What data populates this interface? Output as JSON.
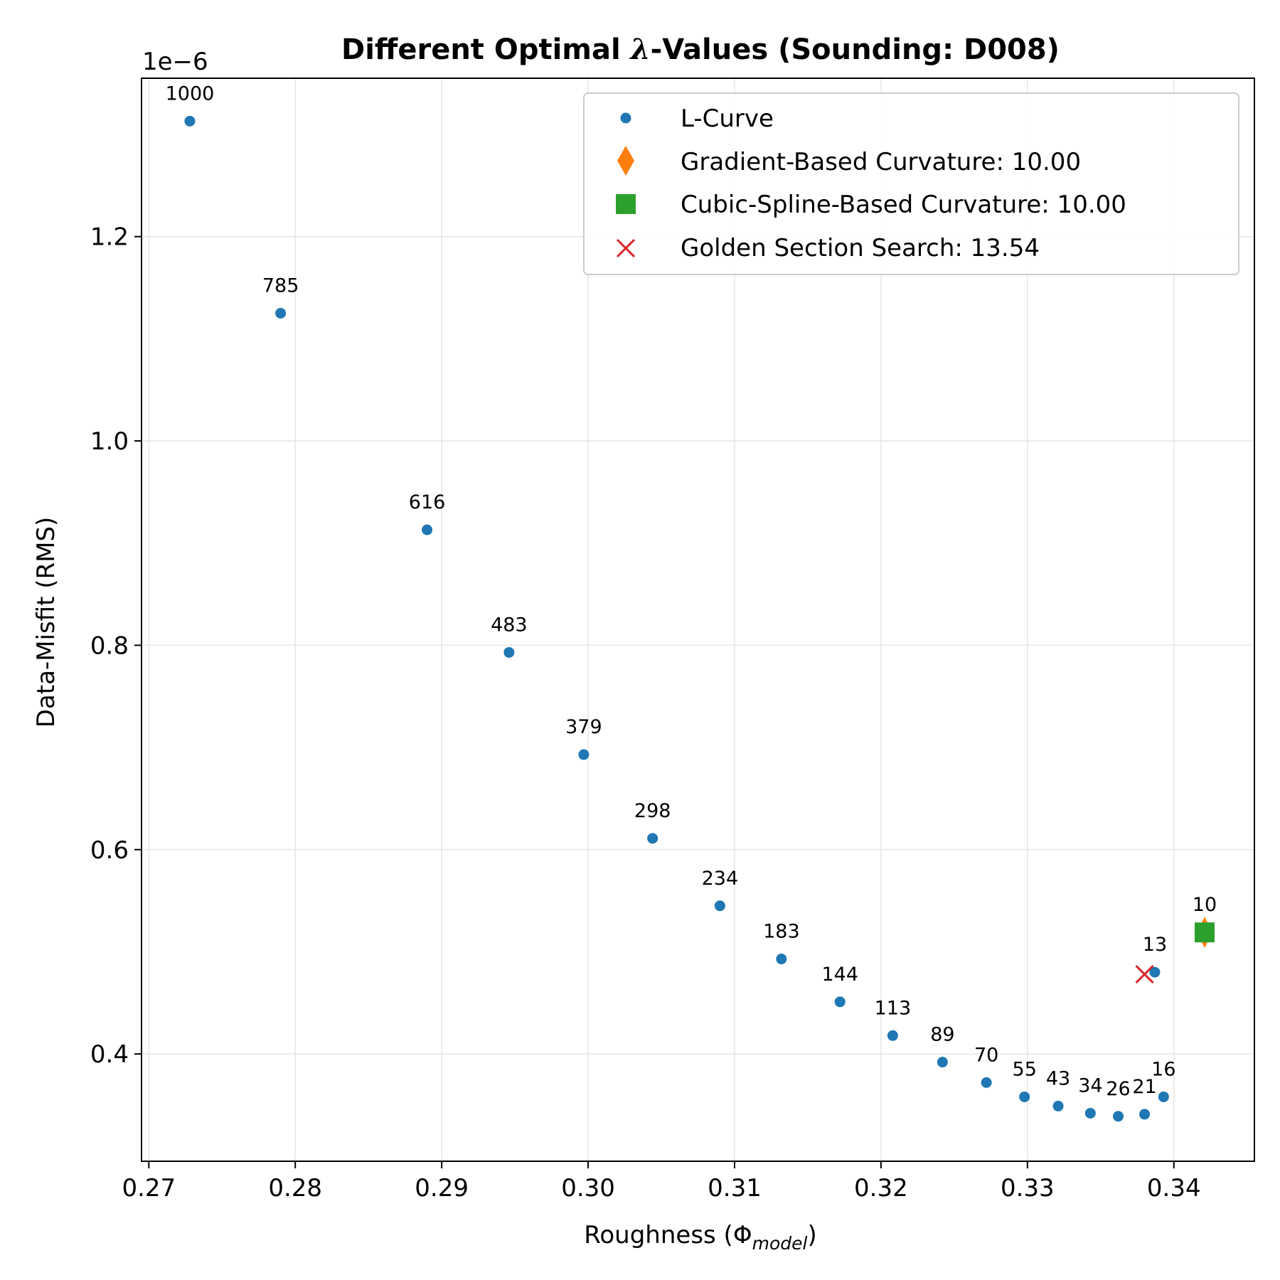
{
  "chart_data": {
    "type": "scatter",
    "title_prefix": "Different Optimal ",
    "title_symbol": "λ",
    "title_suffix": "-Values (Sounding: D008)",
    "xlabel_main": "Roughness (Φ",
    "xlabel_sub": "model",
    "xlabel_close": ")",
    "ylabel": "Data-Misfit (RMS)",
    "y_offset_text": "1e−6",
    "xlim": [
      0.2695,
      0.3455
    ],
    "ylim": [
      0.295,
      1.355
    ],
    "x_ticks": [
      0.27,
      0.28,
      0.29,
      0.3,
      0.31,
      0.32,
      0.33,
      0.34
    ],
    "x_tick_labels": [
      "0.27",
      "0.28",
      "0.29",
      "0.30",
      "0.31",
      "0.32",
      "0.33",
      "0.34"
    ],
    "y_ticks": [
      0.4,
      0.6,
      0.8,
      1.0,
      1.2
    ],
    "y_tick_labels": [
      "0.4",
      "0.6",
      "0.8",
      "1.0",
      "1.2"
    ],
    "grid": true,
    "colors": {
      "lcurve": "#1f77b4",
      "gradient": "#ff7f0e",
      "spline": "#2ca02c",
      "golden": "#d62728",
      "grid": "#e6e6e6"
    },
    "lcurve": [
      {
        "label": "1000",
        "x": 0.2728,
        "y": 1.313
      },
      {
        "label": "785",
        "x": 0.279,
        "y": 1.125
      },
      {
        "label": "616",
        "x": 0.289,
        "y": 0.913
      },
      {
        "label": "483",
        "x": 0.2946,
        "y": 0.793
      },
      {
        "label": "379",
        "x": 0.2997,
        "y": 0.693
      },
      {
        "label": "298",
        "x": 0.3044,
        "y": 0.611
      },
      {
        "label": "234",
        "x": 0.309,
        "y": 0.545
      },
      {
        "label": "183",
        "x": 0.3132,
        "y": 0.493
      },
      {
        "label": "144",
        "x": 0.3172,
        "y": 0.451
      },
      {
        "label": "113",
        "x": 0.3208,
        "y": 0.418
      },
      {
        "label": "89",
        "x": 0.3242,
        "y": 0.392
      },
      {
        "label": "70",
        "x": 0.3272,
        "y": 0.372
      },
      {
        "label": "55",
        "x": 0.3298,
        "y": 0.358
      },
      {
        "label": "43",
        "x": 0.3321,
        "y": 0.349
      },
      {
        "label": "34",
        "x": 0.3343,
        "y": 0.342
      },
      {
        "label": "26",
        "x": 0.3362,
        "y": 0.339
      },
      {
        "label": "21",
        "x": 0.338,
        "y": 0.341
      },
      {
        "label": "16",
        "x": 0.3393,
        "y": 0.358
      },
      {
        "label": "13",
        "x": 0.3387,
        "y": 0.48
      },
      {
        "label": "10",
        "x": 0.3421,
        "y": 0.519
      }
    ],
    "gradient_point": {
      "x": 0.3421,
      "y": 0.519
    },
    "spline_point": {
      "x": 0.3421,
      "y": 0.519
    },
    "golden_point": {
      "x": 0.338,
      "y": 0.478
    },
    "legend": {
      "position": "top-right",
      "entries": [
        {
          "marker": "dot",
          "label": "L-Curve"
        },
        {
          "marker": "diamond",
          "label": "Gradient-Based Curvature: 10.00"
        },
        {
          "marker": "square",
          "label": "Cubic-Spline-Based Curvature: 10.00"
        },
        {
          "marker": "x",
          "label": "Golden Section Search: 13.54"
        }
      ]
    }
  }
}
